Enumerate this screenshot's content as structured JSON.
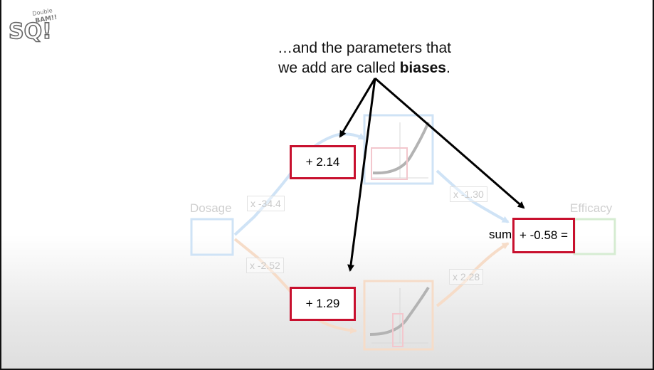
{
  "logo": {
    "text": "StatQuest",
    "small_text": "Double BAM!!"
  },
  "caption": {
    "line1": "…and the parameters that",
    "line2_prefix": "we add are called ",
    "line2_bold": "biases",
    "line2_suffix": "."
  },
  "nodes": {
    "input_label": "Dosage",
    "output_label": "Efficacy"
  },
  "weights": {
    "w_top_in": "x -34.4",
    "w_bottom_in": "x -2.52",
    "w_top_out": "x -1.30",
    "w_bottom_out": "x 2.28"
  },
  "biases": {
    "top": "+ 2.14",
    "bottom": "+ 1.29",
    "final": "+ -0.58 ="
  },
  "sum_label": "sum",
  "colors": {
    "bias_border": "#c8102e",
    "blue_faded": "#cfe3f6",
    "orange_faded": "#f6dcc8",
    "green_faded": "#d6ecd2",
    "arrow": "#000000"
  }
}
